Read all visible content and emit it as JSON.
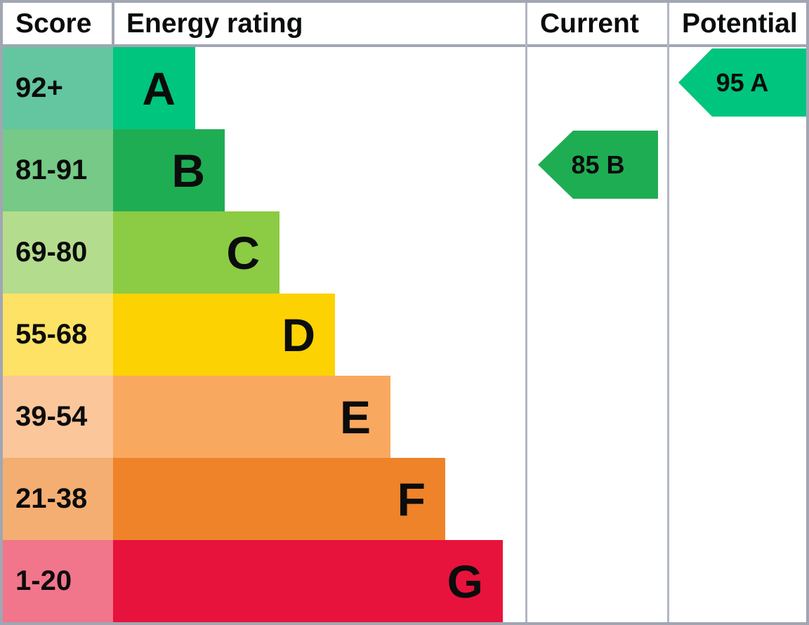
{
  "header": {
    "score": "Score",
    "energy_rating": "Energy rating",
    "current": "Current",
    "potential": "Potential"
  },
  "bands": [
    {
      "band": "A",
      "score_range": "92+",
      "bar_color": "#00c57e",
      "cell_color": "#63c6a0",
      "bar_length_pct": 19.9
    },
    {
      "band": "B",
      "score_range": "81-91",
      "bar_color": "#1fad54",
      "cell_color": "#76c986",
      "bar_length_pct": 27.1
    },
    {
      "band": "C",
      "score_range": "69-80",
      "bar_color": "#8ccb44",
      "cell_color": "#b4dc8d",
      "bar_length_pct": 40.4
    },
    {
      "band": "D",
      "score_range": "55-68",
      "bar_color": "#fcd203",
      "cell_color": "#fde265",
      "bar_length_pct": 53.8
    },
    {
      "band": "E",
      "score_range": "39-54",
      "bar_color": "#f9a860",
      "cell_color": "#fcc69b",
      "bar_length_pct": 67.3
    },
    {
      "band": "F",
      "score_range": "21-38",
      "bar_color": "#ee8329",
      "cell_color": "#f4ae72",
      "bar_length_pct": 80.6
    },
    {
      "band": "G",
      "score_range": "1-20",
      "bar_color": "#e8133c",
      "cell_color": "#f1758b",
      "bar_length_pct": 94.5
    }
  ],
  "markers": {
    "current": {
      "label": "85 B",
      "score": 85,
      "band": "B",
      "color": "#1fad54",
      "column": "current",
      "row_index": 1
    },
    "potential": {
      "label": "95 A",
      "score": 95,
      "band": "A",
      "color": "#00c57e",
      "column": "potential",
      "row_index": 0
    }
  },
  "colors": {
    "border": "#a1a6b2",
    "column_divider": "#b2b6c3",
    "text": "#0b0c0c",
    "background": "#ffffff"
  },
  "chart_data": {
    "type": "bar",
    "title": "",
    "orientation": "horizontal",
    "categories": [
      "A",
      "B",
      "C",
      "D",
      "E",
      "F",
      "G"
    ],
    "score_ranges": [
      "92+",
      "81-91",
      "69-80",
      "55-68",
      "39-54",
      "21-38",
      "1-20"
    ],
    "bar_lengths_pct": [
      19.9,
      27.1,
      40.4,
      53.8,
      67.3,
      80.6,
      94.5
    ],
    "bar_colors": [
      "#00c57e",
      "#1fad54",
      "#8ccb44",
      "#fcd203",
      "#f9a860",
      "#ee8329",
      "#e8133c"
    ],
    "column_headers": [
      "Score",
      "Energy rating",
      "Current",
      "Potential"
    ],
    "markers": [
      {
        "name": "Current",
        "score": 85,
        "band": "B"
      },
      {
        "name": "Potential",
        "score": 95,
        "band": "A"
      }
    ],
    "legend": "none",
    "grid": false
  }
}
